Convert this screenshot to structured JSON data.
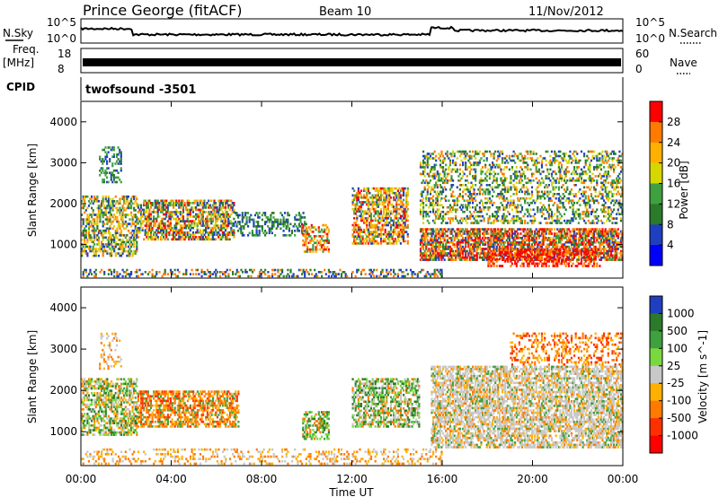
{
  "header": {
    "station": "Prince George (fitACF)",
    "beam": "Beam 10",
    "date": "11/Nov/2012"
  },
  "side_labels": {
    "nsky": "N.Sky",
    "freq": "Freq.",
    "freq_unit": "[MHz]",
    "cpid": "CPID",
    "nsearch": "N.Search",
    "nave": "Nave"
  },
  "cpid_value": "twofsound  -3501",
  "strip_ticks": {
    "nsky_top": "10^5",
    "nsky_bottom": "10^0",
    "freq_top": "18",
    "freq_bottom": "8",
    "nave_top": "60",
    "nave_bottom": "0"
  },
  "chart_data": [
    {
      "type": "heatmap",
      "title": "Power",
      "ylabel": "Slant Range [km]",
      "xlabel": "",
      "ylim": [
        180,
        4500
      ],
      "yticks": [
        "1000",
        "2000",
        "3000",
        "4000"
      ],
      "colorbar_label": "Power [dB]",
      "colorbar_ticks": [
        "28",
        "24",
        "20",
        "16",
        "12",
        "8",
        "4"
      ],
      "colorbar_colors": [
        "#ff0000",
        "#ff7a00",
        "#ffb000",
        "#d6d600",
        "#3fa03f",
        "#2a7a2a",
        "#1f3fc0",
        "#0000ff"
      ],
      "x_ticks": [
        "00:00",
        "04:00",
        "08:00",
        "12:00",
        "16:00",
        "20:00",
        "00:00"
      ]
    },
    {
      "type": "heatmap",
      "title": "Velocity",
      "ylabel": "Slant Range [km]",
      "xlabel": "Time UT",
      "ylim": [
        180,
        4500
      ],
      "yticks": [
        "1000",
        "2000",
        "3000",
        "4000"
      ],
      "colorbar_label": "Velocity [m s^-1]",
      "colorbar_ticks": [
        "1000",
        "500",
        "100",
        "25",
        "-25",
        "-100",
        "-500",
        "-1000"
      ],
      "colorbar_colors": [
        "#1f3fc0",
        "#2a7a2a",
        "#3fa03f",
        "#7ad83f",
        "#c8c8c8",
        "#ffb000",
        "#ff7a00",
        "#ff3000",
        "#ff0000"
      ],
      "x_ticks": [
        "00:00",
        "04:00",
        "08:00",
        "12:00",
        "16:00",
        "20:00",
        "00:00"
      ]
    }
  ]
}
